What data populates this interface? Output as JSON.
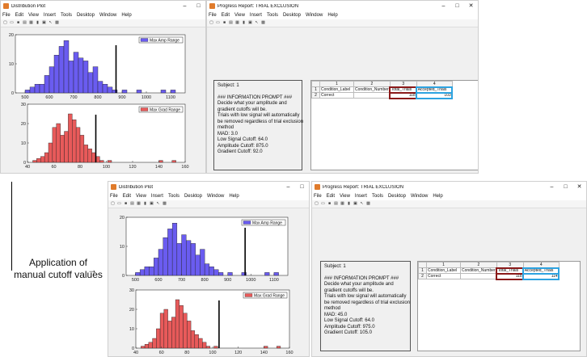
{
  "colors": {
    "amp_bar": "#6a5cf0",
    "grad_bar": "#e85a5a",
    "red_highlight": "#8b1a1a",
    "blue_highlight": "#2ea3e0"
  },
  "menus": [
    "File",
    "Edit",
    "View",
    "Insert",
    "Tools",
    "Desktop",
    "Window",
    "Help"
  ],
  "top": {
    "dist_title": "Distribution Plot",
    "report_title": "Progress Report: TRIAL EXCLUSION",
    "amp_legend": "Max Amp Range",
    "grad_legend": "Max Grad Range",
    "amp_cutoff": 875,
    "grad_cutoff": 92,
    "prompt": [
      "Subject: 1",
      "",
      "###  INFORMATION PROMPT  ###",
      "Decide what your amplitude and",
      "gradient cutoffs will be.",
      "Trials with low signal will automatically",
      "be removed regardless of trial exclusion",
      "method",
      "MAD: 3.0",
      "Low Signal Cutoff: 64.0",
      "Amplitude Cutoff: 875.0",
      "Gradient Cutoff: 92.0"
    ],
    "table": {
      "cols": [
        "1",
        "2",
        "3",
        "4"
      ],
      "rows": [
        "1",
        "2"
      ],
      "headers": [
        "Condition_Label",
        "Condition_Number",
        "Total_Trials",
        "Accepted_Trials"
      ],
      "values": [
        "Correct",
        "",
        "118",
        "103"
      ]
    }
  },
  "bottom": {
    "dist_title": "Distribution Plot",
    "report_title": "Progress Report: TRIAL EXCLUSION",
    "amp_legend": "Max Amp Range",
    "grad_legend": "Max Grad Range",
    "amp_cutoff": 975,
    "grad_cutoff": 105,
    "prompt": [
      "Subject: 1",
      "",
      "###  INFORMATION PROMPT  ###",
      "Decide what your amplitude and",
      "gradient cutoffs will be.",
      "Trials with low signal will automatically",
      "be removed regardless of trial exclusion",
      "method",
      "MAD: 45.0",
      "Low Signal Cutoff: 64.0",
      "Amplitude Cutoff: 975.0",
      "Gradient Cutoff: 105.0"
    ],
    "table": {
      "cols": [
        "1",
        "2",
        "3",
        "4"
      ],
      "rows": [
        "1",
        "2"
      ],
      "headers": [
        "Condition_Label",
        "Condition_Number",
        "Total_Trials",
        "Accepted_Trials"
      ],
      "values": [
        "Correct",
        "",
        "118",
        "114"
      ]
    }
  },
  "annotation": "Application of manual cutoff values",
  "chart_data": [
    {
      "type": "bar",
      "title": "",
      "legend": "Max Amp Range",
      "xlim": [
        460,
        1160
      ],
      "ylim": [
        0,
        20
      ],
      "xticks": [
        500,
        600,
        700,
        800,
        900,
        1000,
        1100
      ],
      "yticks": [
        0,
        10,
        20
      ],
      "bin_width": 20,
      "bin_starts": [
        500,
        520,
        540,
        560,
        580,
        600,
        620,
        640,
        660,
        680,
        700,
        720,
        740,
        760,
        780,
        800,
        820,
        840,
        860,
        900,
        960,
        1060,
        1100
      ],
      "values": [
        1,
        2,
        3,
        3,
        6,
        9,
        13,
        16,
        18,
        11,
        14,
        12,
        11,
        7,
        9,
        4,
        3,
        2,
        1,
        1,
        1,
        1,
        1
      ],
      "cutoff": 875
    },
    {
      "type": "bar",
      "title": "",
      "legend": "Max Grad Range",
      "xlim": [
        40,
        160
      ],
      "ylim": [
        0,
        30
      ],
      "xticks": [
        40,
        60,
        80,
        100,
        120,
        140,
        160
      ],
      "yticks": [
        0,
        10,
        20,
        30
      ],
      "bin_width": 3,
      "bin_starts": [
        44,
        47,
        50,
        53,
        56,
        59,
        62,
        65,
        68,
        71,
        74,
        77,
        80,
        83,
        86,
        89,
        92,
        95,
        101,
        140,
        150
      ],
      "values": [
        1,
        2,
        3,
        5,
        10,
        18,
        20,
        14,
        16,
        25,
        22,
        18,
        14,
        9,
        7,
        5,
        3,
        1,
        1,
        1,
        1
      ],
      "cutoff": 92
    },
    {
      "type": "bar",
      "title": "",
      "legend": "Max Amp Range",
      "xlim": [
        460,
        1160
      ],
      "ylim": [
        0,
        20
      ],
      "xticks": [
        500,
        600,
        700,
        800,
        900,
        1000,
        1100
      ],
      "yticks": [
        0,
        10,
        20
      ],
      "bin_width": 20,
      "bin_starts": [
        500,
        520,
        540,
        560,
        580,
        600,
        620,
        640,
        660,
        680,
        700,
        720,
        740,
        760,
        780,
        800,
        820,
        840,
        860,
        900,
        960,
        1060,
        1100
      ],
      "values": [
        1,
        2,
        3,
        3,
        6,
        9,
        13,
        16,
        18,
        11,
        14,
        12,
        11,
        7,
        9,
        4,
        3,
        2,
        1,
        1,
        1,
        1,
        1
      ],
      "cutoff": 975
    },
    {
      "type": "bar",
      "title": "",
      "legend": "Max Grad Range",
      "xlim": [
        40,
        160
      ],
      "ylim": [
        0,
        30
      ],
      "xticks": [
        40,
        60,
        80,
        100,
        120,
        140,
        160
      ],
      "yticks": [
        0,
        10,
        20,
        30
      ],
      "bin_width": 3,
      "bin_starts": [
        44,
        47,
        50,
        53,
        56,
        59,
        62,
        65,
        68,
        71,
        74,
        77,
        80,
        83,
        86,
        89,
        92,
        95,
        101,
        140,
        150
      ],
      "values": [
        1,
        2,
        3,
        5,
        10,
        18,
        20,
        14,
        16,
        25,
        22,
        18,
        14,
        9,
        7,
        5,
        3,
        1,
        1,
        1,
        1
      ],
      "cutoff": 105
    }
  ]
}
